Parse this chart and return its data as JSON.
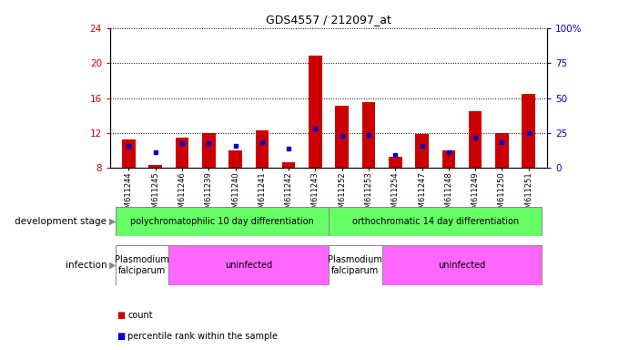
{
  "title": "GDS4557 / 212097_at",
  "samples": [
    "GSM611244",
    "GSM611245",
    "GSM611246",
    "GSM611239",
    "GSM611240",
    "GSM611241",
    "GSM611242",
    "GSM611243",
    "GSM611252",
    "GSM611253",
    "GSM611254",
    "GSM611247",
    "GSM611248",
    "GSM611249",
    "GSM611250",
    "GSM611251"
  ],
  "count_values": [
    11.3,
    8.3,
    11.5,
    12.0,
    10.0,
    12.3,
    8.7,
    20.8,
    15.1,
    15.5,
    9.3,
    11.9,
    10.0,
    14.5,
    12.0,
    16.5
  ],
  "percentile_values": [
    10.5,
    9.8,
    10.8,
    10.8,
    10.5,
    11.0,
    10.2,
    12.5,
    11.7,
    11.8,
    9.5,
    10.5,
    9.8,
    11.5,
    11.0,
    12.0
  ],
  "count_color": "#cc0000",
  "percentile_color": "#0000cc",
  "ylim_left": [
    8,
    24
  ],
  "ylim_right": [
    0,
    100
  ],
  "yticks_left": [
    8,
    12,
    16,
    20,
    24
  ],
  "yticks_right": [
    0,
    25,
    50,
    75,
    100
  ],
  "ytick_right_labels": [
    "0",
    "25",
    "50",
    "75",
    "100%"
  ],
  "background_color": "#ffffff",
  "plot_bg_color": "#ffffff",
  "dev_stage_color": "#66ff66",
  "infection_falciparum_color": "#ffffff",
  "infection_uninfected_color": "#ff66ff",
  "dev_stage_groups": [
    {
      "label": "polychromatophilic 10 day differentiation",
      "start": 0,
      "end": 8
    },
    {
      "label": "orthochromatic 14 day differentiation",
      "start": 8,
      "end": 16
    }
  ],
  "infection_groups": [
    {
      "label": "Plasmodium\nfalciparum",
      "start": 0,
      "end": 2,
      "color": "#ffffff"
    },
    {
      "label": "uninfected",
      "start": 2,
      "end": 8,
      "color": "#ff66ff"
    },
    {
      "label": "Plasmodium\nfalciparum",
      "start": 8,
      "end": 10,
      "color": "#ffffff"
    },
    {
      "label": "uninfected",
      "start": 10,
      "end": 16,
      "color": "#ff66ff"
    }
  ],
  "dev_stage_label": "development stage",
  "infection_label": "infection",
  "legend_count": "count",
  "legend_percentile": "percentile rank within the sample",
  "bar_width": 0.5,
  "n_samples": 16
}
